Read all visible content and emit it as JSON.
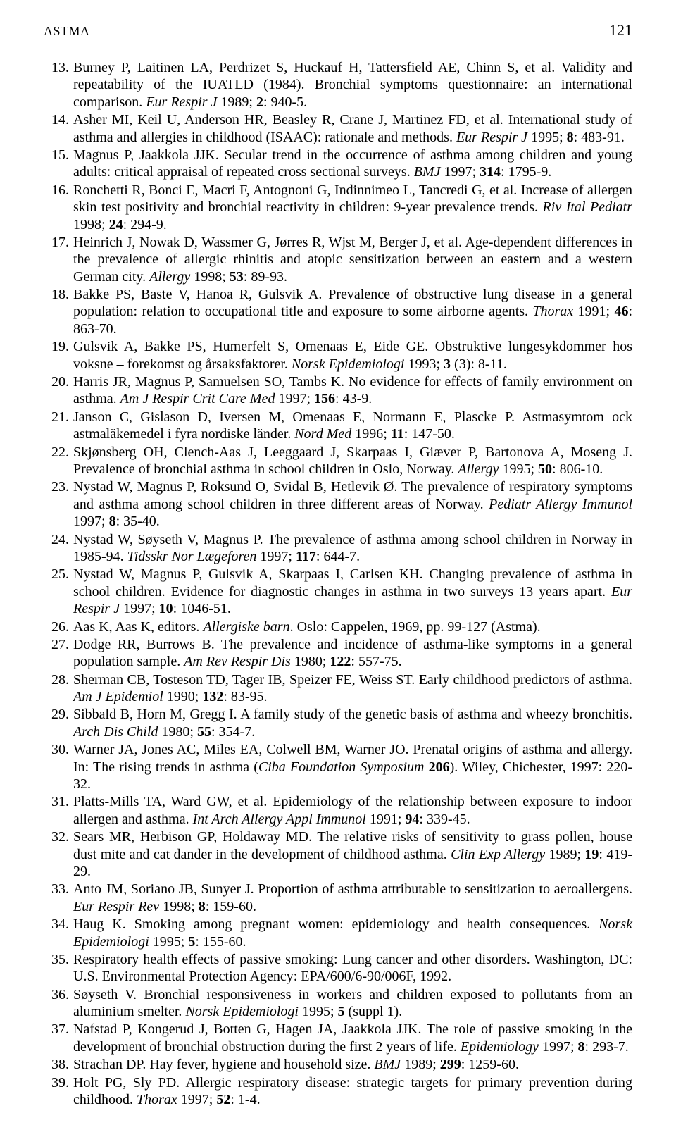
{
  "header": {
    "running_head": "ASTMA",
    "page_number": "121"
  },
  "fonts": {
    "body_family": "Times New Roman",
    "body_size_pt": 15,
    "header_size_pt": 16
  },
  "colors": {
    "text": "#000000",
    "background": "#ffffff"
  },
  "references": [
    {
      "n": "13.",
      "html": "Burney P, Laitinen LA, Perdrizet S, Huckauf H, Tattersfield AE, Chinn S, et al. Validity and repeatability of the IUATLD (1984). Bronchial symptoms questionnaire: an international comparison. <i>Eur Respir J</i> 1989; <b>2</b>: 940-5."
    },
    {
      "n": "14.",
      "html": "Asher MI, Keil U, Anderson HR, Beasley R, Crane J, Martinez FD, et al. International study of asthma and allergies in childhood (ISAAC): rationale and methods. <i>Eur Respir J</i> 1995; <b>8</b>: 483-91."
    },
    {
      "n": "15.",
      "html": "Magnus P, Jaakkola JJK. Secular trend in the occurrence of asthma among children and young adults: critical appraisal of repeated cross sectional surveys. <i>BMJ</i> 1997; <b>314</b>: 1795-9."
    },
    {
      "n": "16.",
      "html": "Ronchetti R, Bonci E, Macri F, Antognoni G, Indinnimeo L, Tancredi G, et al. Increase of allergen skin test positivity and bronchial reactivity in children: 9-year prevalence trends. <i>Riv Ital Pediatr</i> 1998; <b>24</b>: 294-9."
    },
    {
      "n": "17.",
      "html": "Heinrich J, Nowak D, Wassmer G, Jørres R, Wjst M, Berger J, et al. Age-dependent differences in the prevalence of allergic rhinitis and atopic sensitization between an eastern and a western German city. <i>Allergy</i> 1998; <b>53</b>: 89-93."
    },
    {
      "n": "18.",
      "html": "Bakke PS, Baste V, Hanoa R, Gulsvik A. Prevalence of obstructive lung disease in a general population: relation to occupational title and exposure to some airborne agents. <i>Thorax</i> 1991; <b>46</b>: 863-70."
    },
    {
      "n": "19.",
      "html": "Gulsvik A, Bakke PS, Humerfelt S, Omenaas E, Eide GE. Obstruktive lungesykdommer hos voksne – forekomst og årsaksfaktorer. <i>Norsk Epidemiologi</i> 1993; <b>3</b> (3): 8-11."
    },
    {
      "n": "20.",
      "html": "Harris JR, Magnus P, Samuelsen SO, Tambs K. No evidence for effects of family environment on asthma. <i>Am J Respir Crit Care Med</i> 1997; <b>156</b>: 43-9."
    },
    {
      "n": "21.",
      "html": "Janson C, Gislason D, Iversen M, Omenaas E, Normann E, Plascke P. Astmasymtom ock astmaläkemedel i fyra nordiske länder. <i>Nord Med</i> 1996; <b>11</b>: 147-50."
    },
    {
      "n": "22.",
      "html": "Skjønsberg OH, Clench-Aas J, Leeggaard J, Skarpaas I, Giæver P, Bartonova A, Moseng J. Prevalence of bronchial asthma in school children in Oslo, Norway. <i>Allergy</i> 1995; <b>50</b>: 806-10."
    },
    {
      "n": "23.",
      "html": "Nystad W, Magnus P, Roksund O, Svidal B, Hetlevik Ø. The prevalence of respiratory symptoms and asthma among school children in three different areas of Norway. <i>Pediatr Allergy Immunol</i> 1997; <b>8</b>: 35-40."
    },
    {
      "n": "24.",
      "html": "Nystad W, Søyseth V, Magnus P. The prevalence of asthma among school children in Norway in 1985-94. <i>Tidsskr Nor Lægeforen</i> 1997; <b>117</b>: 644-7."
    },
    {
      "n": "25.",
      "html": "Nystad W, Magnus P, Gulsvik A, Skarpaas I, Carlsen KH. Changing prevalence of asthma in school children. Evidence for diagnostic changes in asthma in two surveys 13 years apart. <i>Eur Respir J</i> 1997; <b>10</b>: 1046-51."
    },
    {
      "n": "26.",
      "html": "Aas K, Aas K, editors. <i>Allergiske barn</i>. Oslo: Cappelen, 1969, pp. 99-127 (Astma)."
    },
    {
      "n": "27.",
      "html": "Dodge RR, Burrows B. The prevalence and incidence of asthma-like symptoms in a general population sample. <i>Am Rev Respir Dis</i> 1980; <b>122</b>: 557-75."
    },
    {
      "n": "28.",
      "html": "Sherman CB, Tosteson TD, Tager IB, Speizer FE, Weiss ST. Early childhood predictors of asthma. <i>Am J Epidemiol</i> 1990; <b>132</b>: 83-95."
    },
    {
      "n": "29.",
      "html": "Sibbald B, Horn M, Gregg I. A family study of the genetic basis of asthma and wheezy bronchitis. <i>Arch Dis Child</i> 1980; <b>55</b>: 354-7."
    },
    {
      "n": "30.",
      "html": "Warner JA, Jones AC, Miles EA, Colwell BM, Warner JO. Prenatal origins of asthma and allergy. In: The rising trends in asthma (<i>Ciba Foundation Symposium</i> <b>206</b>). Wiley, Chichester, 1997: 220-32."
    },
    {
      "n": "31.",
      "html": "Platts-Mills TA, Ward GW, et al. Epidemiology of the relationship between exposure to indoor allergen and asthma. <i>Int Arch Allergy Appl Immunol</i> 1991; <b>94</b>: 339-45."
    },
    {
      "n": "32.",
      "html": "Sears MR, Herbison GP, Holdaway MD. The relative risks of sensitivity to grass pollen, house dust mite and cat dander in the development of childhood asthma. <i>Clin Exp Allergy</i> 1989; <b>19</b>: 419-29."
    },
    {
      "n": "33.",
      "html": "Anto JM, Soriano JB, Sunyer J. Proportion of asthma attributable to sensitization to aeroallergens. <i>Eur Respir Rev</i> 1998; <b>8</b>: 159-60."
    },
    {
      "n": "34.",
      "html": "Haug K. Smoking among pregnant women: epidemiology and health consequences. <i>Norsk Epidemiologi</i> 1995; <b>5</b>: 155-60."
    },
    {
      "n": "35.",
      "html": "Respiratory health effects of passive smoking: Lung cancer and other disorders. Washington, DC: U.S. Environmental Protection Agency: EPA/600/6-90/006F, 1992."
    },
    {
      "n": "36.",
      "html": "Søyseth V. Bronchial responsiveness in workers and children exposed to pollutants from an aluminium smelter. <i>Norsk Epidemiologi</i> 1995; <b>5</b> (suppl 1)."
    },
    {
      "n": "37.",
      "html": "Nafstad P, Kongerud J, Botten G, Hagen JA, Jaakkola JJK. The role of passive smoking in the development of bronchial obstruction during the first 2 years of life. <i>Epidemiology</i> 1997; <b>8</b>: 293-7."
    },
    {
      "n": "38.",
      "html": "Strachan DP. Hay fever, hygiene and household size. <i>BMJ</i> 1989; <b>299</b>: 1259-60."
    },
    {
      "n": "39.",
      "html": "Holt PG, Sly PD. Allergic respiratory disease: strategic targets for primary prevention during childhood. <i>Thorax</i> 1997; <b>52</b>: 1-4."
    }
  ]
}
